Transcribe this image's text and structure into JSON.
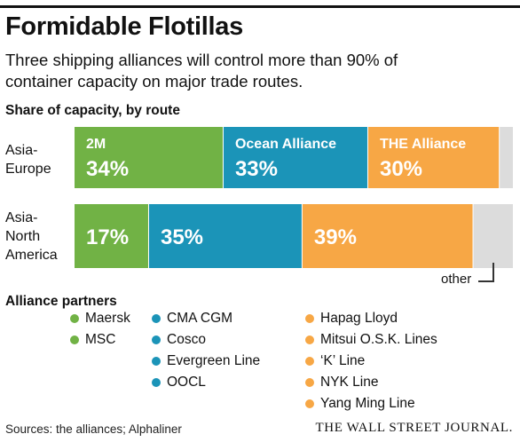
{
  "title": "Formidable Flotillas",
  "subtitle": "Three shipping alliances will control more than 90% of container capacity on major trade routes.",
  "section_share": "Share of capacity, by route",
  "section_partners": "Alliance partners",
  "other_label": "other",
  "source": "Sources: the alliances; Alphaliner",
  "publisher": "THE WALL STREET JOURNAL.",
  "colors": {
    "2M": "#71b245",
    "Ocean Alliance": "#1b94b8",
    "THE Alliance": "#f7a745",
    "other": "#dcdcdc"
  },
  "chart_data": {
    "type": "bar",
    "orientation": "horizontal",
    "stacked": true,
    "categories": [
      "Asia-Europe",
      "Asia-North America"
    ],
    "category_lines": [
      [
        "Asia-",
        "Europe"
      ],
      [
        "Asia-",
        "North",
        "America"
      ]
    ],
    "series": [
      {
        "name": "2M",
        "values": [
          34,
          17
        ],
        "labels": [
          "34%",
          "17%"
        ]
      },
      {
        "name": "Ocean Alliance",
        "values": [
          33,
          35
        ],
        "labels": [
          "33%",
          "35%"
        ]
      },
      {
        "name": "THE Alliance",
        "values": [
          30,
          39
        ],
        "labels": [
          "30%",
          "39%"
        ]
      },
      {
        "name": "other",
        "values": [
          3,
          9
        ],
        "labels": [
          "",
          ""
        ]
      }
    ],
    "xlim": [
      0,
      100
    ],
    "title": "Share of capacity, by route"
  },
  "partners": {
    "2M": [
      "Maersk",
      "MSC"
    ],
    "Ocean Alliance": [
      "CMA CGM",
      "Cosco",
      "Evergreen Line",
      "OOCL"
    ],
    "THE Alliance": [
      "Hapag Lloyd",
      "Mitsui O.S.K. Lines",
      "‘K’ Line",
      "NYK Line",
      "Yang Ming Line"
    ]
  }
}
